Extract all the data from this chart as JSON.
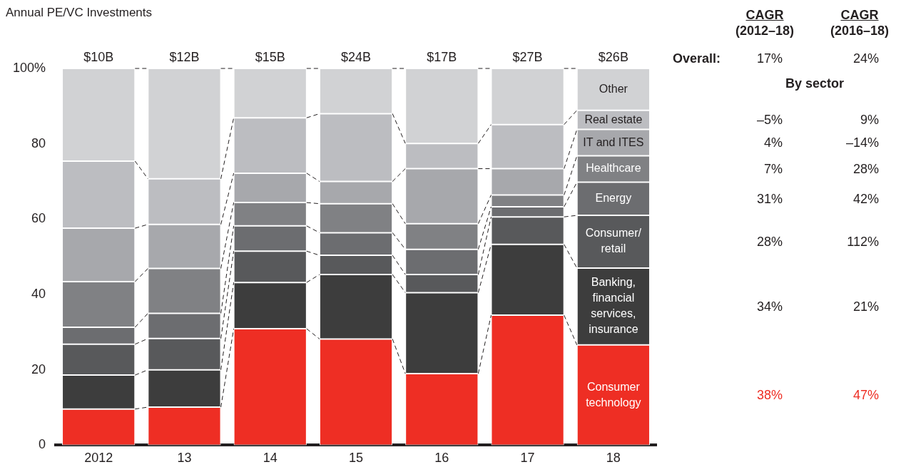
{
  "chart_data": {
    "type": "bar",
    "stacked": true,
    "title": "Annual PE/VC Investments",
    "categories": [
      "2012",
      "13",
      "14",
      "15",
      "16",
      "17",
      "18"
    ],
    "series": [
      {
        "name": "Consumer technology",
        "color": "#ee2e24",
        "values": [
          9.6,
          10.1,
          30.9,
          28.2,
          19.0,
          34.5,
          26.6
        ]
      },
      {
        "name": "Banking, financial services, insurance",
        "color": "#3d3d3d",
        "values": [
          9.0,
          9.9,
          12.3,
          17.1,
          21.5,
          18.8,
          20.4
        ]
      },
      {
        "name": "Consumer/ retail",
        "color": "#58595b",
        "values": [
          8.2,
          8.3,
          8.3,
          5.1,
          4.8,
          7.3,
          14.0
        ]
      },
      {
        "name": "Energy",
        "color": "#6c6d70",
        "values": [
          4.5,
          6.7,
          6.7,
          6.0,
          6.7,
          2.7,
          8.8
        ]
      },
      {
        "name": "Healthcare",
        "color": "#808184",
        "values": [
          12.1,
          11.9,
          6.2,
          7.7,
          6.8,
          3.1,
          7.0
        ]
      },
      {
        "name": "IT and ITES",
        "color": "#a7a8ac",
        "values": [
          14.2,
          11.7,
          7.8,
          5.9,
          14.6,
          7.0,
          7.0
        ]
      },
      {
        "name": "Real estate",
        "color": "#bcbdc1",
        "values": [
          17.8,
          12.1,
          14.7,
          18.0,
          6.7,
          11.7,
          5.1
        ]
      },
      {
        "name": "Other",
        "color": "#d1d2d4",
        "values": [
          24.6,
          29.3,
          13.1,
          12.0,
          19.9,
          14.9,
          11.1
        ]
      }
    ],
    "ylim": [
      0,
      100
    ],
    "yticks": [
      0,
      20,
      40,
      60,
      80,
      {
        "value": 100,
        "label": "100%"
      }
    ],
    "grid": false,
    "legend": false,
    "annotations": [
      {
        "text": "$10B",
        "x": "2012",
        "y": 100
      },
      {
        "text": "$12B",
        "x": "13",
        "y": 100
      },
      {
        "text": "$15B",
        "x": "14",
        "y": 100
      },
      {
        "text": "$24B",
        "x": "15",
        "y": 100
      },
      {
        "text": "$17B",
        "x": "16",
        "y": 100
      },
      {
        "text": "$27B",
        "x": "17",
        "y": 100
      },
      {
        "text": "$26B",
        "x": "18",
        "y": 100
      },
      "CAGR (2012–18)",
      "CAGR (2016–18)",
      "Overall:",
      "17%",
      "24%",
      "By sector",
      "–5%",
      "9%",
      "4%",
      "–14%",
      "7%",
      "28%",
      "31%",
      "42%",
      "28%",
      "112%",
      "34%",
      "21%",
      "38%",
      "47%"
    ]
  }
}
